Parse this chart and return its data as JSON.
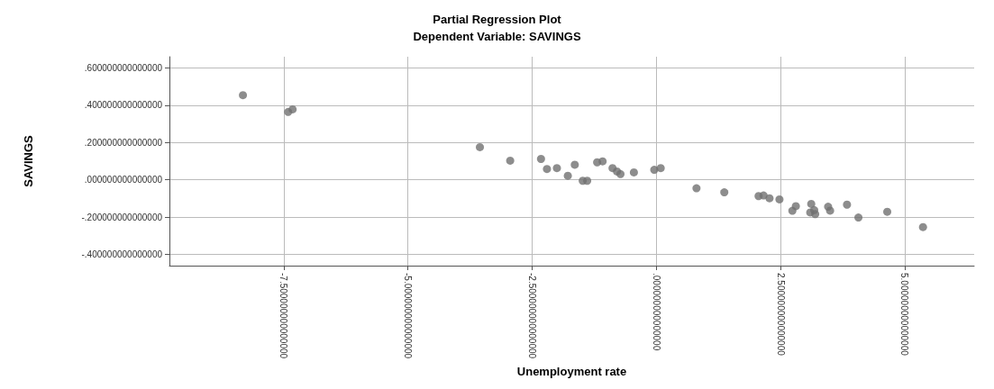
{
  "chart_data": {
    "type": "scatter",
    "title": "Partial Regression Plot",
    "subtitle": "Dependent Variable: SAVINGS",
    "xlabel": "Unemployment rate",
    "ylabel": "SAVINGS",
    "xlim": [
      -9.8,
      6.4
    ],
    "ylim": [
      -0.46,
      0.66
    ],
    "xticks": [
      {
        "value": -7.5,
        "label": "-7.500000000000000"
      },
      {
        "value": -5,
        "label": "-5.000000000000000"
      },
      {
        "value": -2.5,
        "label": "-2.500000000000000"
      },
      {
        "value": 0,
        "label": ".000000000000000"
      },
      {
        "value": 2.5,
        "label": "2.500000000000000"
      },
      {
        "value": 5,
        "label": "5.000000000000000"
      }
    ],
    "yticks": [
      {
        "value": -0.4,
        "label": "-.400000000000000"
      },
      {
        "value": -0.2,
        "label": "-.200000000000000"
      },
      {
        "value": 0,
        "label": ".000000000000000"
      },
      {
        "value": 0.2,
        "label": ".200000000000000"
      },
      {
        "value": 0.4,
        "label": ".400000000000000"
      },
      {
        "value": 0.6,
        "label": ".600000000000000"
      }
    ],
    "grid": true,
    "marker": "circle",
    "series": [
      {
        "color": "#707070",
        "x": [
          -8.32,
          -7.41,
          -7.32,
          -3.55,
          -2.94,
          -2.32,
          -2.2,
          -2.0,
          -1.78,
          -1.64,
          -1.48,
          -1.39,
          -1.19,
          -1.08,
          -0.88,
          -0.79,
          -0.72,
          -0.45,
          -0.04,
          0.09,
          0.81,
          1.37,
          2.06,
          2.16,
          2.28,
          2.48,
          2.74,
          2.81,
          3.12,
          3.1,
          3.18,
          3.2,
          3.46,
          3.5,
          3.84,
          4.07,
          4.65,
          5.37
        ],
        "values": [
          0.454,
          0.364,
          0.378,
          0.175,
          0.103,
          0.112,
          0.058,
          0.063,
          0.022,
          0.081,
          -0.005,
          -0.005,
          0.094,
          0.099,
          0.063,
          0.045,
          0.031,
          0.04,
          0.054,
          0.063,
          -0.045,
          -0.067,
          -0.087,
          -0.084,
          -0.099,
          -0.105,
          -0.166,
          -0.141,
          -0.129,
          -0.175,
          -0.162,
          -0.184,
          -0.144,
          -0.165,
          -0.133,
          -0.202,
          -0.171,
          -0.253
        ]
      }
    ]
  }
}
